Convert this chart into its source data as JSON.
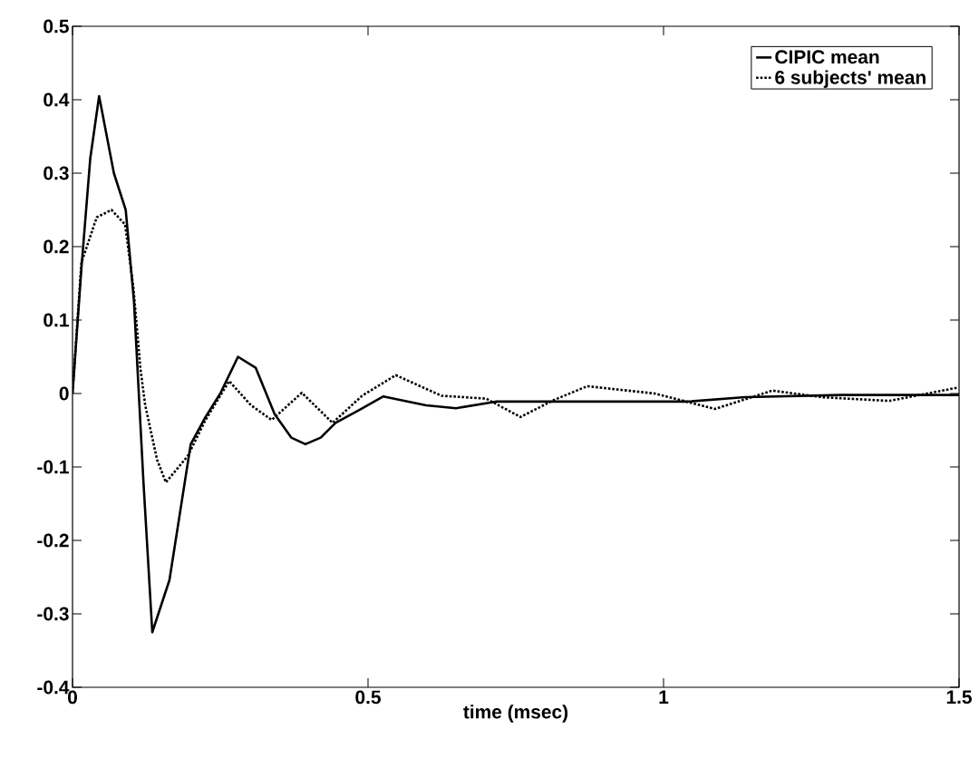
{
  "chart_data": {
    "type": "line",
    "xlabel": "time (msec)",
    "xlim": [
      0,
      1.5
    ],
    "ylim": [
      -0.4,
      0.5
    ],
    "xticks": [
      0,
      0.5,
      1,
      1.5
    ],
    "yticks": [
      -0.4,
      -0.3,
      -0.2,
      -0.1,
      0,
      0.1,
      0.2,
      0.3,
      0.4,
      0.5
    ],
    "legend": "top right",
    "grid": false,
    "series": [
      {
        "name": "CIPIC mean",
        "color": "#000000",
        "line_style": "solid",
        "x": [
          0,
          0.015,
          0.03,
          0.045,
          0.07,
          0.09,
          0.104,
          0.12,
          0.135,
          0.164,
          0.2,
          0.225,
          0.25,
          0.28,
          0.31,
          0.342,
          0.37,
          0.394,
          0.42,
          0.445,
          0.486,
          0.526,
          0.598,
          0.649,
          0.716,
          0.814,
          1.04,
          1.138,
          1.3,
          1.5
        ],
        "values": [
          0,
          0.17,
          0.32,
          0.405,
          0.3,
          0.25,
          0.125,
          -0.12,
          -0.325,
          -0.254,
          -0.069,
          -0.032,
          0.0,
          0.05,
          0.035,
          -0.028,
          -0.06,
          -0.069,
          -0.06,
          -0.04,
          -0.022,
          -0.004,
          -0.016,
          -0.02,
          -0.011,
          -0.011,
          -0.011,
          -0.005,
          -0.002,
          -0.002
        ]
      },
      {
        "name": "6 subjects'  mean",
        "color": "#000000",
        "line_style": "dotted",
        "x": [
          0,
          0.015,
          0.041,
          0.066,
          0.089,
          0.103,
          0.115,
          0.123,
          0.143,
          0.158,
          0.195,
          0.225,
          0.265,
          0.302,
          0.337,
          0.388,
          0.44,
          0.49,
          0.547,
          0.624,
          0.7,
          0.758,
          0.814,
          0.871,
          0.985,
          1.087,
          1.184,
          1.268,
          1.382,
          1.497
        ],
        "values": [
          0,
          0.178,
          0.24,
          0.25,
          0.23,
          0.144,
          0.033,
          -0.016,
          -0.09,
          -0.121,
          -0.085,
          -0.036,
          0.017,
          -0.016,
          -0.036,
          0.001,
          -0.04,
          -0.003,
          0.025,
          -0.003,
          -0.007,
          -0.032,
          -0.009,
          0.01,
          0.0,
          -0.021,
          0.004,
          -0.005,
          -0.01,
          0.008
        ]
      }
    ]
  }
}
